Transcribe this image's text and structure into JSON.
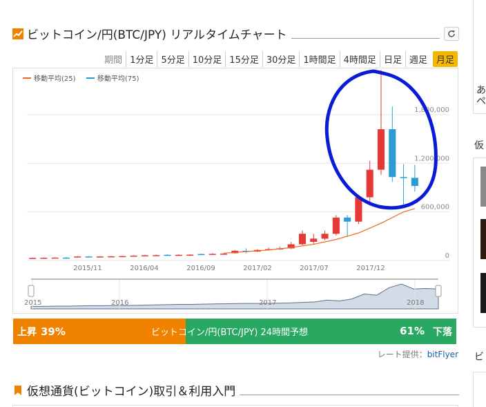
{
  "header": {
    "title": "ビットコイン/円(BTC/JPY) リアルタイムチャート",
    "refresh_icon": "refresh-icon",
    "chart_icon": "bar-chart-icon"
  },
  "periods": {
    "label": "期間",
    "items": [
      "1分足",
      "5分足",
      "10分足",
      "15分足",
      "30分足",
      "1時間足",
      "4時間足",
      "日足",
      "週足",
      "月足"
    ],
    "active": "月足"
  },
  "chart_data": {
    "type": "candlestick",
    "legend": [
      "移動平均(25)",
      "移動平均(75)"
    ],
    "legend_colors": [
      "#ee6a1a",
      "#2b9ad6"
    ],
    "legend_placement": "top-left",
    "y_ticks": [
      "0",
      "600,000",
      "1,200,000",
      "1,800,000"
    ],
    "y_axis": "right",
    "ylim": [
      0,
      2200000
    ],
    "x_ticks": [
      "2015/11",
      "2016/04",
      "2016/09",
      "2017/02",
      "2017/07",
      "2017/12"
    ],
    "candles": [
      {
        "o": 30000,
        "c": 32000,
        "h": 36000,
        "l": 28000
      },
      {
        "o": 32000,
        "c": 34000,
        "h": 38000,
        "l": 30000
      },
      {
        "o": 34000,
        "c": 36000,
        "h": 40000,
        "l": 32000
      },
      {
        "o": 36000,
        "c": 34000,
        "h": 40000,
        "l": 30000
      },
      {
        "o": 40000,
        "c": 50000,
        "h": 55000,
        "l": 38000
      },
      {
        "o": 50000,
        "c": 46000,
        "h": 54000,
        "l": 44000
      },
      {
        "o": 46000,
        "c": 50000,
        "h": 54000,
        "l": 44000
      },
      {
        "o": 50000,
        "c": 52000,
        "h": 56000,
        "l": 48000
      },
      {
        "o": 52000,
        "c": 54000,
        "h": 58000,
        "l": 50000
      },
      {
        "o": 56000,
        "c": 60000,
        "h": 66000,
        "l": 52000
      },
      {
        "o": 60000,
        "c": 64000,
        "h": 70000,
        "l": 58000
      },
      {
        "o": 64000,
        "c": 66000,
        "h": 72000,
        "l": 62000
      },
      {
        "o": 70000,
        "c": 66000,
        "h": 76000,
        "l": 60000
      },
      {
        "o": 66000,
        "c": 70000,
        "h": 76000,
        "l": 62000
      },
      {
        "o": 70000,
        "c": 72000,
        "h": 78000,
        "l": 66000
      },
      {
        "o": 80000,
        "c": 76000,
        "h": 86000,
        "l": 70000
      },
      {
        "o": 76000,
        "c": 82000,
        "h": 90000,
        "l": 72000
      },
      {
        "o": 82000,
        "c": 84000,
        "h": 92000,
        "l": 78000
      },
      {
        "o": 90000,
        "c": 120000,
        "h": 130000,
        "l": 86000
      },
      {
        "o": 120000,
        "c": 110000,
        "h": 150000,
        "l": 90000
      },
      {
        "o": 110000,
        "c": 130000,
        "h": 140000,
        "l": 104000
      },
      {
        "o": 130000,
        "c": 140000,
        "h": 160000,
        "l": 124000
      },
      {
        "o": 140000,
        "c": 150000,
        "h": 170000,
        "l": 130000
      },
      {
        "o": 150000,
        "c": 200000,
        "h": 230000,
        "l": 140000
      },
      {
        "o": 200000,
        "c": 330000,
        "h": 370000,
        "l": 190000
      },
      {
        "o": 230000,
        "c": 270000,
        "h": 330000,
        "l": 200000
      },
      {
        "o": 270000,
        "c": 330000,
        "h": 370000,
        "l": 250000
      },
      {
        "o": 330000,
        "c": 530000,
        "h": 560000,
        "l": 310000
      },
      {
        "o": 530000,
        "c": 480000,
        "h": 560000,
        "l": 290000
      },
      {
        "o": 480000,
        "c": 780000,
        "h": 800000,
        "l": 450000
      },
      {
        "o": 780000,
        "c": 1120000,
        "h": 1230000,
        "l": 680000
      },
      {
        "o": 1120000,
        "c": 1620000,
        "h": 2350000,
        "l": 1060000
      },
      {
        "o": 1620000,
        "c": 1030000,
        "h": 1900000,
        "l": 970000
      },
      {
        "o": 1030000,
        "c": 1020000,
        "h": 1190000,
        "l": 690000
      },
      {
        "o": 1020000,
        "c": 920000,
        "h": 1180000,
        "l": 850000
      }
    ],
    "ma25": [
      {
        "i": 17,
        "v": 90000
      },
      {
        "i": 19,
        "v": 110000
      },
      {
        "i": 21,
        "v": 130000
      },
      {
        "i": 23,
        "v": 160000
      },
      {
        "i": 25,
        "v": 200000
      },
      {
        "i": 27,
        "v": 260000
      },
      {
        "i": 29,
        "v": 340000
      },
      {
        "i": 31,
        "v": 460000
      },
      {
        "i": 33,
        "v": 600000
      },
      {
        "i": 34,
        "v": 640000
      }
    ],
    "navigator": {
      "labels": [
        "2015",
        "2016",
        "2017",
        "2018"
      ],
      "values": [
        10,
        10,
        11,
        11,
        12,
        13,
        13,
        14,
        14,
        15,
        16,
        17,
        18,
        18,
        19,
        20,
        21,
        22,
        22,
        22,
        23,
        24,
        26,
        28,
        35,
        32,
        40,
        60,
        55,
        85,
        100,
        80,
        82,
        80
      ]
    }
  },
  "forecast": {
    "up_label": "上昇",
    "up_pct": "39%",
    "title": "ビットコイン/円(BTC/JPY) 24時間予想",
    "down_pct": "61%",
    "down_label": "下落",
    "up_color": "#f08200",
    "down_color": "#28a860"
  },
  "provider": {
    "prefix": "レート提供：",
    "name": "bitFlyer"
  },
  "section2": {
    "title": "仮想通貨(ビットコイン)取引＆利用入門",
    "icon": "guide-icon"
  },
  "sidebar": {
    "heading1": "仮",
    "heading2": "ビ",
    "snippet1": "あ",
    "snippet2": "ペ"
  }
}
